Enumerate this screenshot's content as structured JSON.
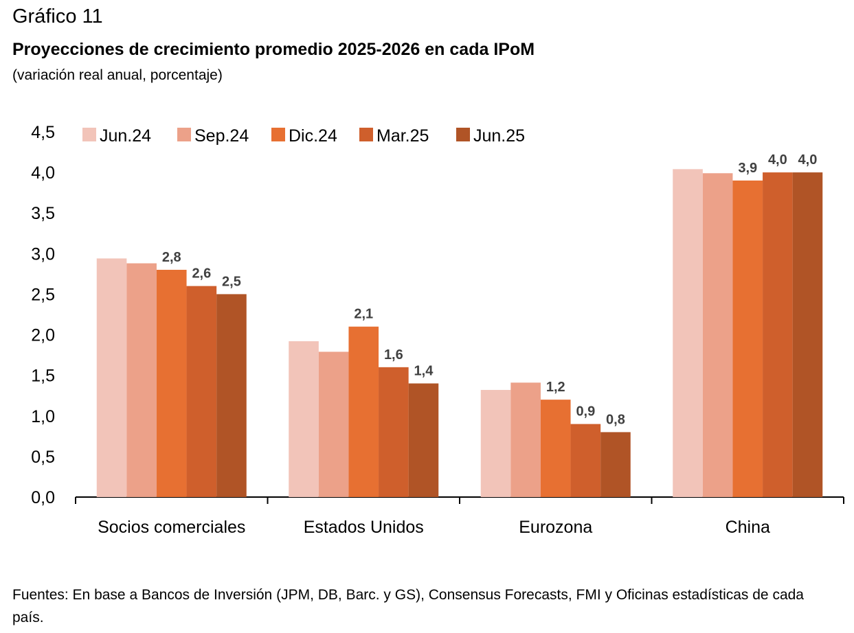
{
  "header": {
    "label": "Gráfico 11",
    "title": "Proyecciones de crecimiento promedio 2025-2026 en cada IPoM",
    "subtitle": "(variación real anual, porcentaje)"
  },
  "chart_data": {
    "type": "bar",
    "categories": [
      "Socios comerciales",
      "Estados Unidos",
      "Eurozona",
      "China"
    ],
    "series": [
      {
        "name": "Jun.24",
        "color": "#F2C4B9",
        "values": [
          2.94,
          1.92,
          1.32,
          4.04
        ]
      },
      {
        "name": "Sep.24",
        "color": "#ECA189",
        "values": [
          2.88,
          1.79,
          1.41,
          3.99
        ]
      },
      {
        "name": "Dic.24",
        "color": "#E77032",
        "values": [
          2.8,
          2.1,
          1.2,
          3.9
        ]
      },
      {
        "name": "Mar.25",
        "color": "#CF5F2C",
        "values": [
          2.6,
          1.6,
          0.9,
          4.0
        ]
      },
      {
        "name": "Jun.25",
        "color": "#B05426",
        "values": [
          2.5,
          1.4,
          0.8,
          4.0
        ]
      }
    ],
    "data_labels": {
      "Dic.24": [
        "2,8",
        "2,1",
        "1,2",
        "3,9"
      ],
      "Mar.25": [
        "2,6",
        "1,6",
        "0,9",
        "4,0"
      ],
      "Jun.25": [
        "2,5",
        "1,4",
        "0,8",
        "4,0"
      ]
    },
    "yticks": [
      "0,0",
      "0,5",
      "1,0",
      "1,5",
      "2,0",
      "2,5",
      "3,0",
      "3,5",
      "4,0",
      "4,5"
    ],
    "ylim": [
      0,
      4.5
    ],
    "legend_position": "top-left",
    "grid": false
  },
  "source": "Fuentes: En base a Bancos de Inversión (JPM, DB, Barc. y GS), Consensus Forecasts, FMI y Oficinas estadísticas de cada país."
}
